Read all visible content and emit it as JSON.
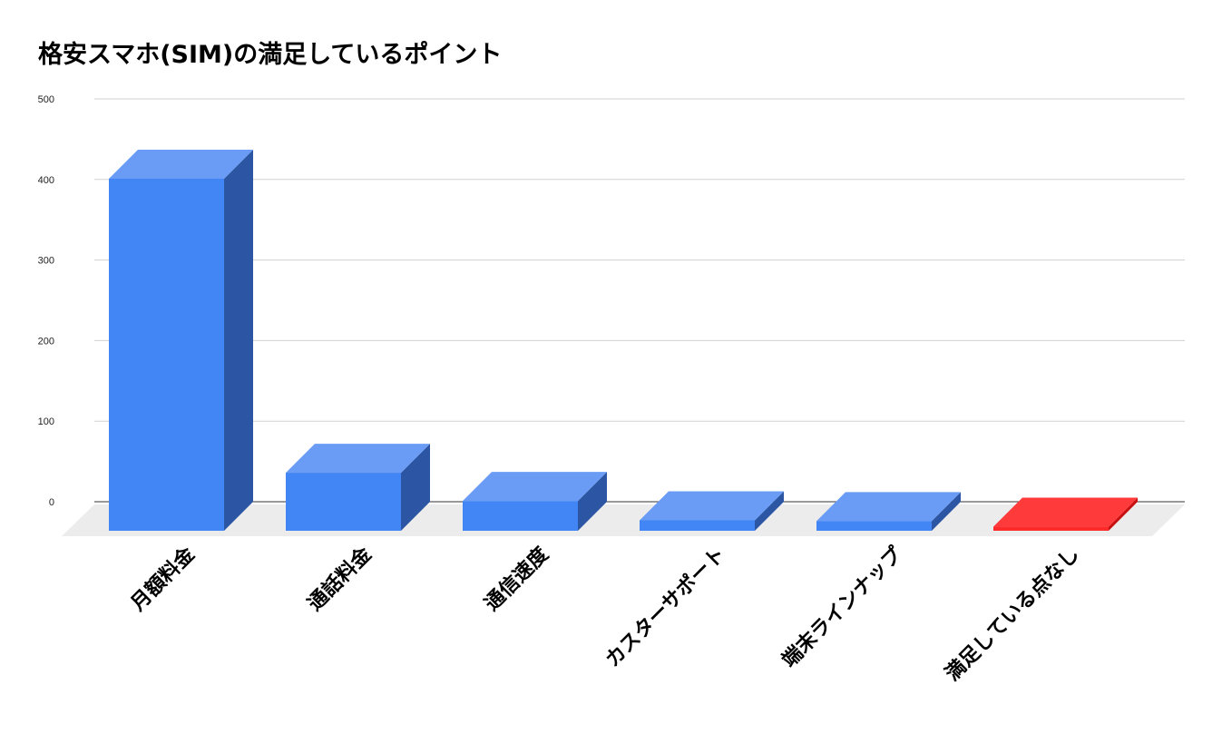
{
  "chart_data": {
    "type": "bar",
    "title": "格安スマホ(SIM)の満足しているポイント",
    "categories": [
      "月額料金",
      "通話料金",
      "通信速度",
      "カスターサポート",
      "端末ラインナップ",
      "満足している点なし"
    ],
    "values": [
      437,
      72,
      37,
      13,
      12,
      5
    ],
    "ylim": [
      0,
      500
    ],
    "yticks": [
      0,
      100,
      200,
      300,
      400,
      500
    ],
    "xlabel": "",
    "ylabel": "",
    "grid": true,
    "style": "3d",
    "colors": {
      "bar_front": "#4285f4",
      "bar_top": "#6a9cf5",
      "bar_side": "#2c56a3",
      "highlight_front": "#ff2b2b",
      "highlight_top": "#ff3a3a",
      "highlight_side": "#c81010",
      "floor": "#ececec",
      "grid": "#d0d0d0"
    },
    "highlight_index": 5
  }
}
